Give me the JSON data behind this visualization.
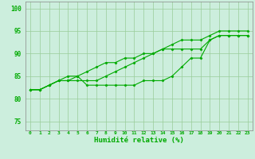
{
  "xlabel": "Humidité relative (%)",
  "background_color": "#cceedd",
  "grid_color": "#99cc99",
  "line_color": "#00aa00",
  "xlim": [
    -0.5,
    23.5
  ],
  "ylim": [
    73,
    101.5
  ],
  "yticks": [
    75,
    80,
    85,
    90,
    95,
    100
  ],
  "xtick_labels": [
    "0",
    "1",
    "2",
    "3",
    "4",
    "5",
    "6",
    "7",
    "8",
    "9",
    "10",
    "11",
    "12",
    "13",
    "14",
    "15",
    "16",
    "17",
    "18",
    "19",
    "20",
    "21",
    "22",
    "23"
  ],
  "line1": [
    82,
    82,
    83,
    84,
    84,
    85,
    83,
    83,
    83,
    83,
    83,
    83,
    84,
    84,
    84,
    85,
    87,
    89,
    89,
    93,
    94,
    94,
    94,
    94
  ],
  "line2": [
    82,
    82,
    83,
    84,
    85,
    85,
    86,
    87,
    88,
    88,
    89,
    89,
    90,
    90,
    91,
    92,
    93,
    93,
    93,
    94,
    95,
    95,
    95,
    95
  ],
  "line3": [
    82,
    82,
    83,
    84,
    84,
    84,
    84,
    84,
    85,
    86,
    87,
    88,
    89,
    90,
    91,
    91,
    91,
    91,
    91,
    93,
    94,
    94,
    94,
    94
  ]
}
